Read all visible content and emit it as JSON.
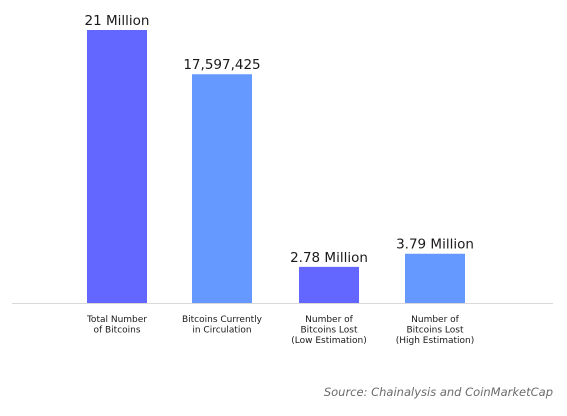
{
  "chart_data": {
    "type": "bar",
    "categories": [
      [
        "Total Number",
        "of Bitcoins"
      ],
      [
        "Bitcoins Currently",
        "in Circulation"
      ],
      [
        "Number of",
        "Bitcoins Lost",
        "(Low Estimation)"
      ],
      [
        "Number of",
        "Bitcoins Lost",
        "(High Estimation)"
      ]
    ],
    "values": [
      21000000,
      17597425,
      2780000,
      3790000
    ],
    "data_labels": [
      "21 Million",
      "17,597,425",
      "2.78 Million",
      "3.79 Million"
    ],
    "colors": [
      "#6366ff",
      "#6699ff",
      "#6366ff",
      "#6699ff"
    ],
    "title": "",
    "xlabel": "",
    "ylabel": "",
    "ylim": [
      0,
      21000000
    ],
    "grid": false,
    "legend": "none"
  },
  "source": "Source: Chainalysis and CoinMarketCap"
}
